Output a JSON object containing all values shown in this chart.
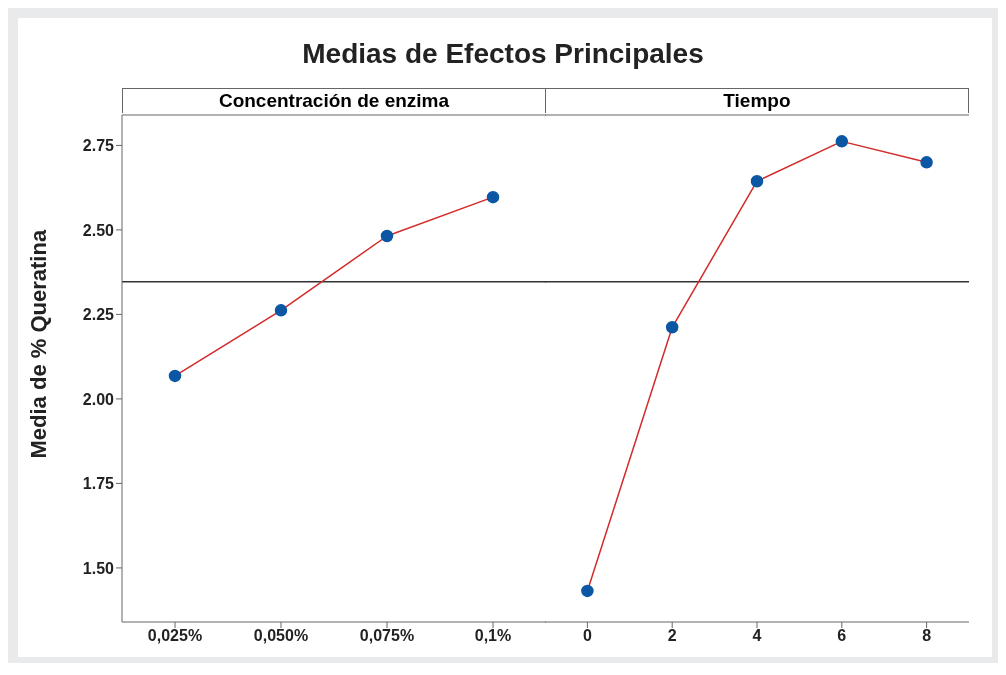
{
  "chart_data": [
    {
      "type": "line",
      "title": "Medias de Efectos Principales",
      "subtitle": "Concentración de enzima",
      "ylabel": "Media de % Queratina",
      "categories": [
        "0,025%",
        "0,050%",
        "0,075%",
        "0,1%"
      ],
      "series": [
        {
          "color": "#d42a2a",
          "values": [
            2.068,
            2.262,
            2.482,
            2.597
          ]
        }
      ],
      "ylim": [
        1.34,
        2.84
      ],
      "yticks": [
        {
          "value": 1.5,
          "label": "1.50"
        },
        {
          "value": 1.75,
          "label": "1.75"
        },
        {
          "value": 2.0,
          "label": "2.00"
        },
        {
          "value": 2.25,
          "label": "2.25"
        },
        {
          "value": 2.5,
          "label": "2.50"
        },
        {
          "value": 2.75,
          "label": "2.75"
        }
      ],
      "ref_lines": [
        {
          "axis": "y",
          "value": 2.347,
          "color": "#333333"
        }
      ],
      "marker": "circle",
      "grid": false,
      "legend": false
    },
    {
      "type": "line",
      "subtitle": "Tiempo",
      "categories": [
        "0",
        "2",
        "4",
        "6",
        "8"
      ],
      "series": [
        {
          "color": "#d42a2a",
          "values": [
            1.432,
            2.212,
            2.644,
            2.762,
            2.7
          ]
        }
      ],
      "ylim": [
        1.34,
        2.84
      ],
      "ref_lines": [
        {
          "axis": "y",
          "value": 2.347,
          "color": "#333333"
        }
      ],
      "marker": "circle",
      "grid": false,
      "legend": false,
      "tick_labels": "x"
    }
  ]
}
